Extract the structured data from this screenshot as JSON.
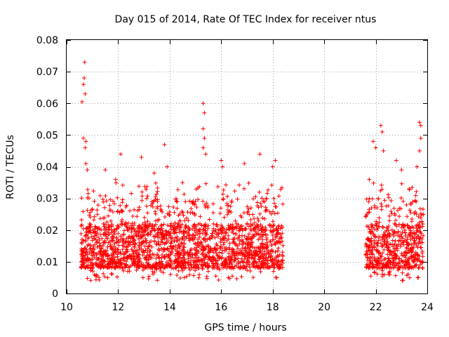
{
  "chart_data": {
    "type": "scatter",
    "title": "Day 015 of 2014, Rate Of TEC Index for receiver ntus",
    "xlabel": "GPS time / hours",
    "ylabel": "ROTI / TECUs",
    "xlim": [
      10,
      24
    ],
    "ylim": [
      0,
      0.08
    ],
    "x_ticks": [
      "10",
      "12",
      "14",
      "16",
      "18",
      "20",
      "22",
      "24"
    ],
    "y_ticks": [
      "0",
      "0.01",
      "0.02",
      "0.03",
      "0.04",
      "0.05",
      "0.06",
      "0.07",
      "0.08"
    ],
    "grid": true,
    "marker": "+",
    "color": "#ff0000",
    "data_note": "dense point cloud; clusters span 10.5-18.4 h and 21.6-23.8 h",
    "series": [
      {
        "name": "ROTI",
        "segments": [
          [
            10.55,
            18.4
          ],
          [
            21.6,
            23.85
          ]
        ],
        "typical_range": [
          0.004,
          0.03
        ],
        "notable_points": [
          [
            10.7,
            0.073
          ],
          [
            10.68,
            0.068
          ],
          [
            10.65,
            0.066
          ],
          [
            10.72,
            0.063
          ],
          [
            10.6,
            0.0605
          ],
          [
            10.65,
            0.049
          ],
          [
            10.75,
            0.048
          ],
          [
            10.72,
            0.046
          ],
          [
            10.75,
            0.041
          ],
          [
            10.8,
            0.039
          ],
          [
            11.5,
            0.039
          ],
          [
            11.9,
            0.036
          ],
          [
            12.1,
            0.044
          ],
          [
            12.9,
            0.043
          ],
          [
            13.4,
            0.038
          ],
          [
            13.8,
            0.047
          ],
          [
            13.9,
            0.04
          ],
          [
            14.5,
            0.035
          ],
          [
            15.3,
            0.06
          ],
          [
            15.35,
            0.057
          ],
          [
            15.3,
            0.052
          ],
          [
            15.35,
            0.049
          ],
          [
            15.3,
            0.046
          ],
          [
            15.4,
            0.044
          ],
          [
            16.0,
            0.042
          ],
          [
            16.05,
            0.04
          ],
          [
            16.9,
            0.041
          ],
          [
            17.5,
            0.044
          ],
          [
            18.0,
            0.04
          ],
          [
            18.1,
            0.042
          ],
          [
            21.75,
            0.036
          ],
          [
            21.9,
            0.048
          ],
          [
            22.0,
            0.046
          ],
          [
            22.2,
            0.053
          ],
          [
            22.25,
            0.051
          ],
          [
            22.3,
            0.045
          ],
          [
            22.8,
            0.042
          ],
          [
            23.0,
            0.039
          ],
          [
            23.3,
            0.033
          ],
          [
            23.6,
            0.04
          ],
          [
            23.7,
            0.045
          ],
          [
            23.75,
            0.049
          ],
          [
            23.7,
            0.054
          ],
          [
            23.75,
            0.053
          ]
        ],
        "point_count": 2600
      }
    ]
  }
}
